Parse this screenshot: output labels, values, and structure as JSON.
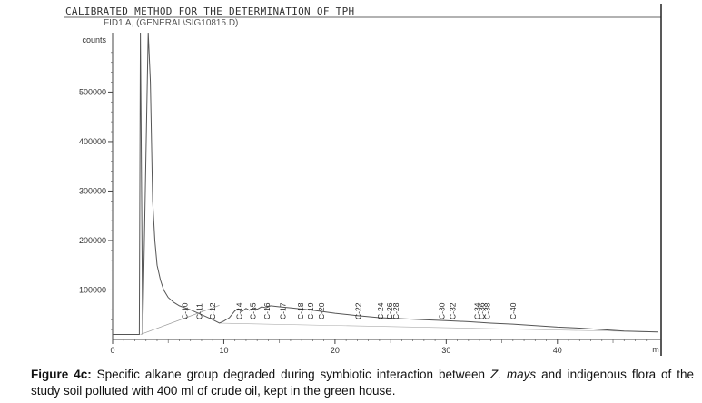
{
  "header": {
    "method_title": "CALIBRATED METHOD FOR THE DETERMINATION OF TPH",
    "signal_name": "FID1 A, (GENERAL\\SIG10815.D)"
  },
  "caption": {
    "label": "Figure 4c:",
    "text_before_italic": " Specific alkane group degraded during symbiotic interaction between ",
    "italic": "Z. mays",
    "text_after_italic": " and indigenous flora of the study soil polluted with 400 ml of crude oil, kept in the green house."
  },
  "chart_data": {
    "type": "line",
    "ylabel": "counts",
    "x_unit_label": "m",
    "xlim": [
      0,
      49
    ],
    "ylim": [
      0,
      620000
    ],
    "x_ticks": [
      0,
      10,
      20,
      30,
      40
    ],
    "y_ticks": [
      100000,
      200000,
      300000,
      400000,
      500000
    ],
    "y_tick_labels": [
      "100000",
      "200000",
      "300000",
      "400000",
      "500000"
    ],
    "series": [
      {
        "x": [
          0,
          2.4,
          2.5,
          2.7,
          3.2,
          3.4,
          3.6,
          3.8,
          4.0,
          4.3,
          4.6,
          5.0,
          5.5,
          6.0,
          7.0,
          8.0,
          9.0,
          9.6,
          10.0,
          10.5,
          11.0,
          11.3,
          11.6,
          12.0,
          12.3,
          12.7,
          13.0,
          13.4,
          13.8,
          14.2,
          15.0,
          16.0,
          18.0,
          20.0,
          22.0,
          24.0,
          26.0,
          28.0,
          30.0,
          32.0,
          34.0,
          36.0,
          38.0,
          40.0,
          42.0,
          44.0,
          46.0,
          49.0
        ],
        "y": [
          10000,
          10000,
          620000,
          10000,
          620000,
          520000,
          280000,
          200000,
          150000,
          120000,
          100000,
          85000,
          75000,
          68000,
          60000,
          50000,
          40000,
          33000,
          37000,
          44000,
          58000,
          62000,
          56000,
          63000,
          59000,
          64000,
          61000,
          66000,
          64000,
          68000,
          66000,
          64000,
          59000,
          53000,
          48000,
          44000,
          42000,
          40000,
          38000,
          36000,
          33000,
          31000,
          28000,
          25000,
          23000,
          20000,
          17000,
          15000
        ]
      }
    ],
    "peaks": [
      {
        "label": "C-10",
        "x": 6.5
      },
      {
        "label": "C-11",
        "x": 7.8
      },
      {
        "label": "C-12",
        "x": 9.0
      },
      {
        "label": "C-14",
        "x": 11.4
      },
      {
        "label": "C-15",
        "x": 12.6
      },
      {
        "label": "C-16",
        "x": 13.9
      },
      {
        "label": "C-17",
        "x": 15.3
      },
      {
        "label": "C-18",
        "x": 16.9
      },
      {
        "label": "C-19",
        "x": 17.8
      },
      {
        "label": "C-20",
        "x": 18.8
      },
      {
        "label": "C-22",
        "x": 22.1
      },
      {
        "label": "C-24",
        "x": 24.1
      },
      {
        "label": "C-26",
        "x": 24.9
      },
      {
        "label": "C-28",
        "x": 25.5
      },
      {
        "label": "C-30",
        "x": 29.6
      },
      {
        "label": "C-32",
        "x": 30.6
      },
      {
        "label": "C-34",
        "x": 32.8
      },
      {
        "label": "C-36",
        "x": 33.2
      },
      {
        "label": "C-38",
        "x": 33.7
      },
      {
        "label": "C-40",
        "x": 36.0
      }
    ]
  }
}
